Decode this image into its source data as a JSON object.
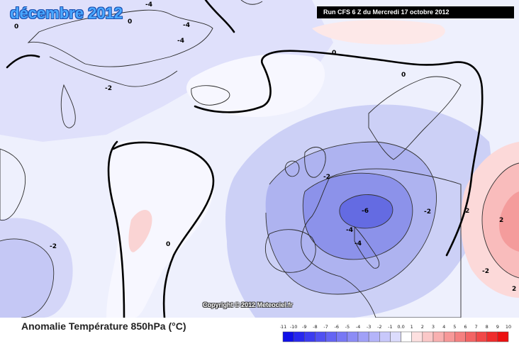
{
  "title": "décembre 2012",
  "run_label": "Run CFS 6 Z du Mercredi 17 octobre 2012",
  "copyright": "Copyright © 2012 Meteociel.fr",
  "legend": {
    "title": "Anomalie Température 850hPa (°C)",
    "ticks": [
      "-11",
      "-10",
      "-9",
      "-8",
      "-7",
      "-6",
      "-5",
      "-4",
      "-3",
      "-2",
      "-1",
      "0.0",
      "1",
      "2",
      "3",
      "4",
      "5",
      "6",
      "7",
      "8",
      "9",
      "10"
    ],
    "colors": [
      "#1010e8",
      "#2828ee",
      "#3c3cf0",
      "#5050f2",
      "#6464f4",
      "#7878f5",
      "#8c8cf6",
      "#a0a0f8",
      "#b4b4fa",
      "#c8c8fb",
      "#dcdcfd",
      "#ffffff",
      "#fde0e0",
      "#fbc8c8",
      "#f9b0b0",
      "#f79898",
      "#f58080",
      "#f36464",
      "#f14848",
      "#ef2c2c",
      "#ec1010"
    ]
  },
  "contour_labels": [
    "0",
    "0",
    "0",
    "0",
    "0",
    "-2",
    "-2",
    "-2",
    "-2",
    "-2",
    "-4",
    "-4",
    "-4",
    "-6",
    "2",
    "2",
    "2",
    "-4",
    "-4"
  ],
  "colors": {
    "ocean_neutral": "#ffffff",
    "cold_light": "#dfe0fb",
    "cold_medium": "#bcbff3",
    "cold_strong": "#8f95ec",
    "cold_core": "#5f66e0",
    "warm_light": "#fcd9d9",
    "warm_medium": "#f7a6a6",
    "title_blue": "#4aa8ff"
  }
}
